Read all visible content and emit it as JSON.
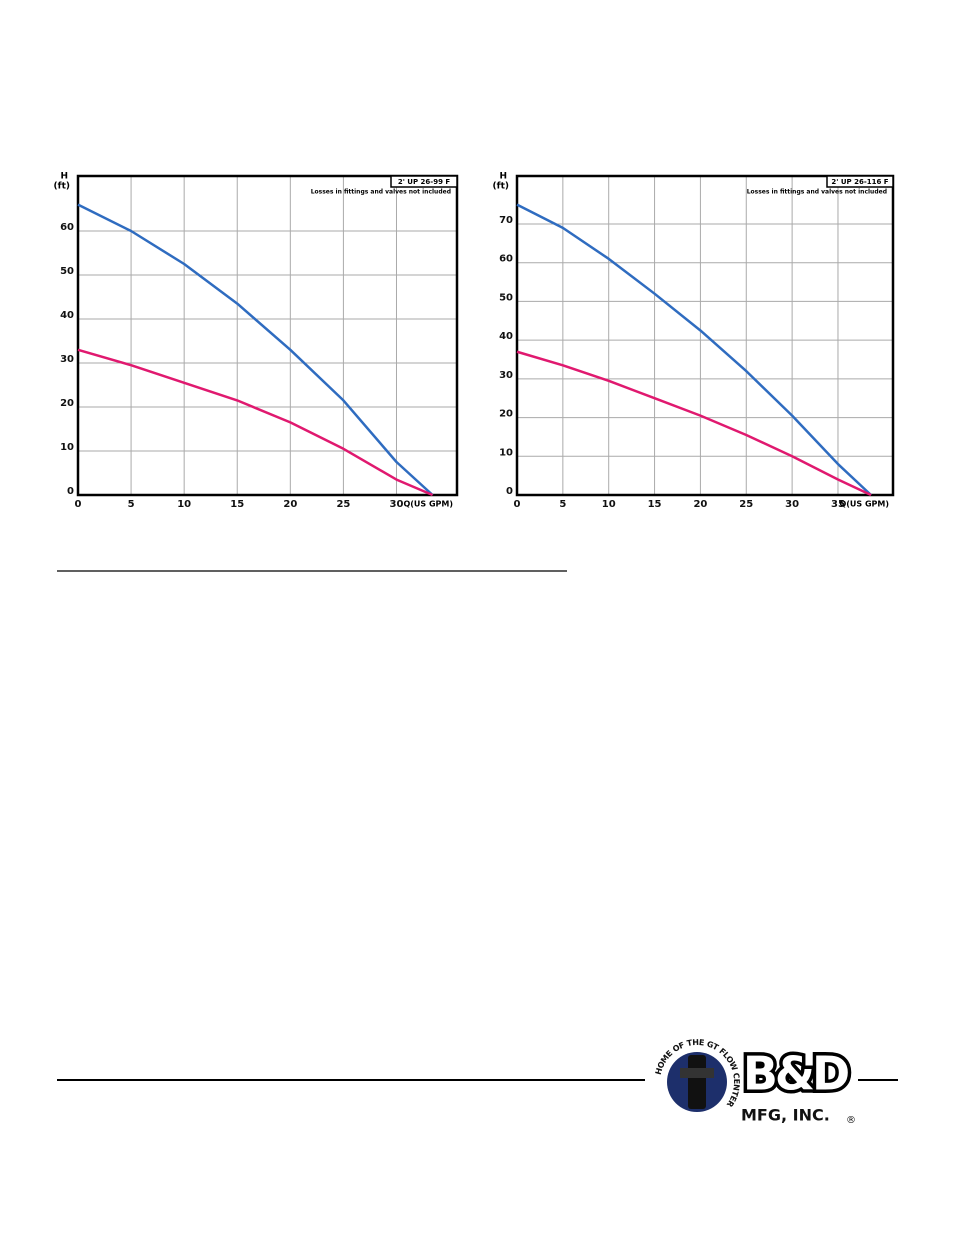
{
  "chart_data": [
    {
      "type": "line",
      "title": "2' UP 26-99 F",
      "subtitle": "Losses in fittings and valves not included",
      "y_label": "H",
      "y_unit": "(ft)",
      "x_label": "Q(US GPM)",
      "x": [
        0,
        5,
        10,
        15,
        20,
        25,
        30,
        33.4
      ],
      "series": [
        {
          "color": "#2f6cc0",
          "values": [
            66,
            60,
            52.5,
            43.5,
            33,
            21.5,
            7.5,
            0
          ]
        },
        {
          "color": "#e0196f",
          "values": [
            33,
            29.5,
            25.5,
            21.5,
            16.5,
            10.5,
            3.5,
            0
          ]
        }
      ],
      "xlim": [
        0,
        35.7
      ],
      "xticks": [
        0,
        5,
        10,
        15,
        20,
        25,
        30
      ],
      "ylim": [
        0,
        72.5
      ],
      "yticks": [
        0,
        10,
        20,
        30,
        40,
        50,
        60
      ],
      "grid": true
    },
    {
      "type": "line",
      "title": "2' UP 26-116 F",
      "subtitle": "Losses in fittings and valves not included",
      "y_label": "H",
      "y_unit": "(ft)",
      "x_label": "Q(US GPM)",
      "x": [
        0,
        5,
        10,
        15,
        20,
        25,
        30,
        35,
        38.6
      ],
      "series": [
        {
          "color": "#2f6cc0",
          "values": [
            75,
            69,
            61,
            52,
            42.5,
            32,
            20.5,
            8,
            0
          ]
        },
        {
          "color": "#e0196f",
          "values": [
            37,
            33.5,
            29.5,
            25,
            20.5,
            15.5,
            10,
            4,
            0
          ]
        }
      ],
      "xlim": [
        0,
        41
      ],
      "xticks": [
        0,
        5,
        10,
        15,
        20,
        25,
        30,
        35
      ],
      "ylim": [
        0,
        82.4
      ],
      "yticks": [
        0,
        10,
        20,
        30,
        40,
        50,
        60,
        70
      ],
      "grid": true
    }
  ],
  "logo": {
    "name": "B&D",
    "company": "MFG, INC.",
    "mark": "®",
    "tagline": "HOME OF THE GT FLOW CENTER"
  }
}
